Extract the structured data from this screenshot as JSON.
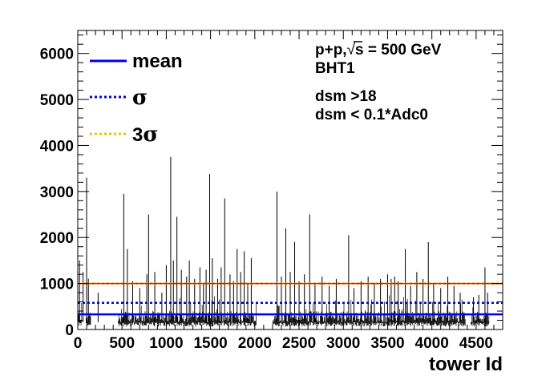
{
  "chart_data": {
    "type": "line",
    "xlabel": "tower Id",
    "ylabel": "",
    "xlim": [
      0,
      4800
    ],
    "ylim": [
      0,
      6500
    ],
    "x_ticks": [
      0,
      500,
      1000,
      1500,
      2000,
      2500,
      3000,
      3500,
      4000,
      4500
    ],
    "y_ticks": [
      0,
      1000,
      2000,
      3000,
      4000,
      5000,
      6000
    ],
    "legend": [
      {
        "label": "mean",
        "symbol": "",
        "color": "#0000ee",
        "style": "solid"
      },
      {
        "label": "",
        "symbol": "σ",
        "color": "#0000cc",
        "style": "dotted"
      },
      {
        "label": "3",
        "symbol": "σ",
        "color": "#e8c800",
        "style": "dotted"
      }
    ],
    "annotations": [
      "p+p, s = 500 GeV",
      "BHT1",
      "dsm >18",
      "dsm < 0.1*Adc0"
    ],
    "annotation_parts": {
      "pre": "p+p,",
      "sqrt_arg": "s",
      "post": " = 500 GeV"
    },
    "reference_lines": [
      {
        "name": "mean",
        "y": 330,
        "color": "#0000ee",
        "style": "solid"
      },
      {
        "name": "sigma",
        "y": 580,
        "color": "#0000cc",
        "style": "dotted"
      },
      {
        "name": "3sigma",
        "y": 1000,
        "color": "#e8c800",
        "style": "dotted"
      },
      {
        "name": "threshold",
        "y": 1000,
        "color": "#ff0000",
        "style": "solid"
      }
    ],
    "series": [
      {
        "style": "histogram",
        "color": "#000000",
        "gaps": [
          [
            50,
            90
          ],
          [
            150,
            450
          ],
          [
            2020,
            2200
          ],
          [
            4380,
            4440
          ],
          [
            4650,
            4800
          ]
        ],
        "baseline_range": [
          160,
          400
        ],
        "spikes": [
          {
            "x": 20,
            "y": 1500
          },
          {
            "x": 60,
            "y": 1250
          },
          {
            "x": 100,
            "y": 3300
          },
          {
            "x": 120,
            "y": 1100
          },
          {
            "x": 230,
            "y": 800
          },
          {
            "x": 520,
            "y": 2950
          },
          {
            "x": 560,
            "y": 1750
          },
          {
            "x": 620,
            "y": 1050
          },
          {
            "x": 700,
            "y": 900
          },
          {
            "x": 780,
            "y": 1200
          },
          {
            "x": 800,
            "y": 2500
          },
          {
            "x": 870,
            "y": 1250
          },
          {
            "x": 950,
            "y": 800
          },
          {
            "x": 1000,
            "y": 1400
          },
          {
            "x": 1050,
            "y": 3750
          },
          {
            "x": 1080,
            "y": 1500
          },
          {
            "x": 1120,
            "y": 2450
          },
          {
            "x": 1170,
            "y": 1300
          },
          {
            "x": 1230,
            "y": 1150
          },
          {
            "x": 1260,
            "y": 1500
          },
          {
            "x": 1320,
            "y": 1100
          },
          {
            "x": 1380,
            "y": 1350
          },
          {
            "x": 1420,
            "y": 1000
          },
          {
            "x": 1450,
            "y": 1300
          },
          {
            "x": 1490,
            "y": 3380
          },
          {
            "x": 1520,
            "y": 1550
          },
          {
            "x": 1580,
            "y": 1100
          },
          {
            "x": 1620,
            "y": 1350
          },
          {
            "x": 1660,
            "y": 2850
          },
          {
            "x": 1720,
            "y": 1200
          },
          {
            "x": 1760,
            "y": 1050
          },
          {
            "x": 1800,
            "y": 1750
          },
          {
            "x": 1840,
            "y": 1250
          },
          {
            "x": 1880,
            "y": 1700
          },
          {
            "x": 1920,
            "y": 1000
          },
          {
            "x": 1960,
            "y": 1550
          },
          {
            "x": 2250,
            "y": 3000
          },
          {
            "x": 2300,
            "y": 1150
          },
          {
            "x": 2350,
            "y": 2200
          },
          {
            "x": 2400,
            "y": 1250
          },
          {
            "x": 2450,
            "y": 1900
          },
          {
            "x": 2500,
            "y": 1050
          },
          {
            "x": 2560,
            "y": 1200
          },
          {
            "x": 2620,
            "y": 2500
          },
          {
            "x": 2680,
            "y": 1000
          },
          {
            "x": 2760,
            "y": 1150
          },
          {
            "x": 2840,
            "y": 950
          },
          {
            "x": 2920,
            "y": 1100
          },
          {
            "x": 3060,
            "y": 2050
          },
          {
            "x": 3120,
            "y": 900
          },
          {
            "x": 3200,
            "y": 1050
          },
          {
            "x": 3280,
            "y": 1150
          },
          {
            "x": 3350,
            "y": 1000
          },
          {
            "x": 3420,
            "y": 1100
          },
          {
            "x": 3500,
            "y": 1200
          },
          {
            "x": 3540,
            "y": 1100
          },
          {
            "x": 3580,
            "y": 1150
          },
          {
            "x": 3620,
            "y": 1050
          },
          {
            "x": 3700,
            "y": 1750
          },
          {
            "x": 3760,
            "y": 950
          },
          {
            "x": 3830,
            "y": 1250
          },
          {
            "x": 3900,
            "y": 1100
          },
          {
            "x": 3960,
            "y": 1900
          },
          {
            "x": 4020,
            "y": 1000
          },
          {
            "x": 4100,
            "y": 900
          },
          {
            "x": 4180,
            "y": 1150
          },
          {
            "x": 4250,
            "y": 950
          },
          {
            "x": 4320,
            "y": 800
          },
          {
            "x": 4470,
            "y": 700
          },
          {
            "x": 4530,
            "y": 750
          },
          {
            "x": 4600,
            "y": 1350
          },
          {
            "x": 4630,
            "y": 800
          }
        ]
      }
    ]
  }
}
